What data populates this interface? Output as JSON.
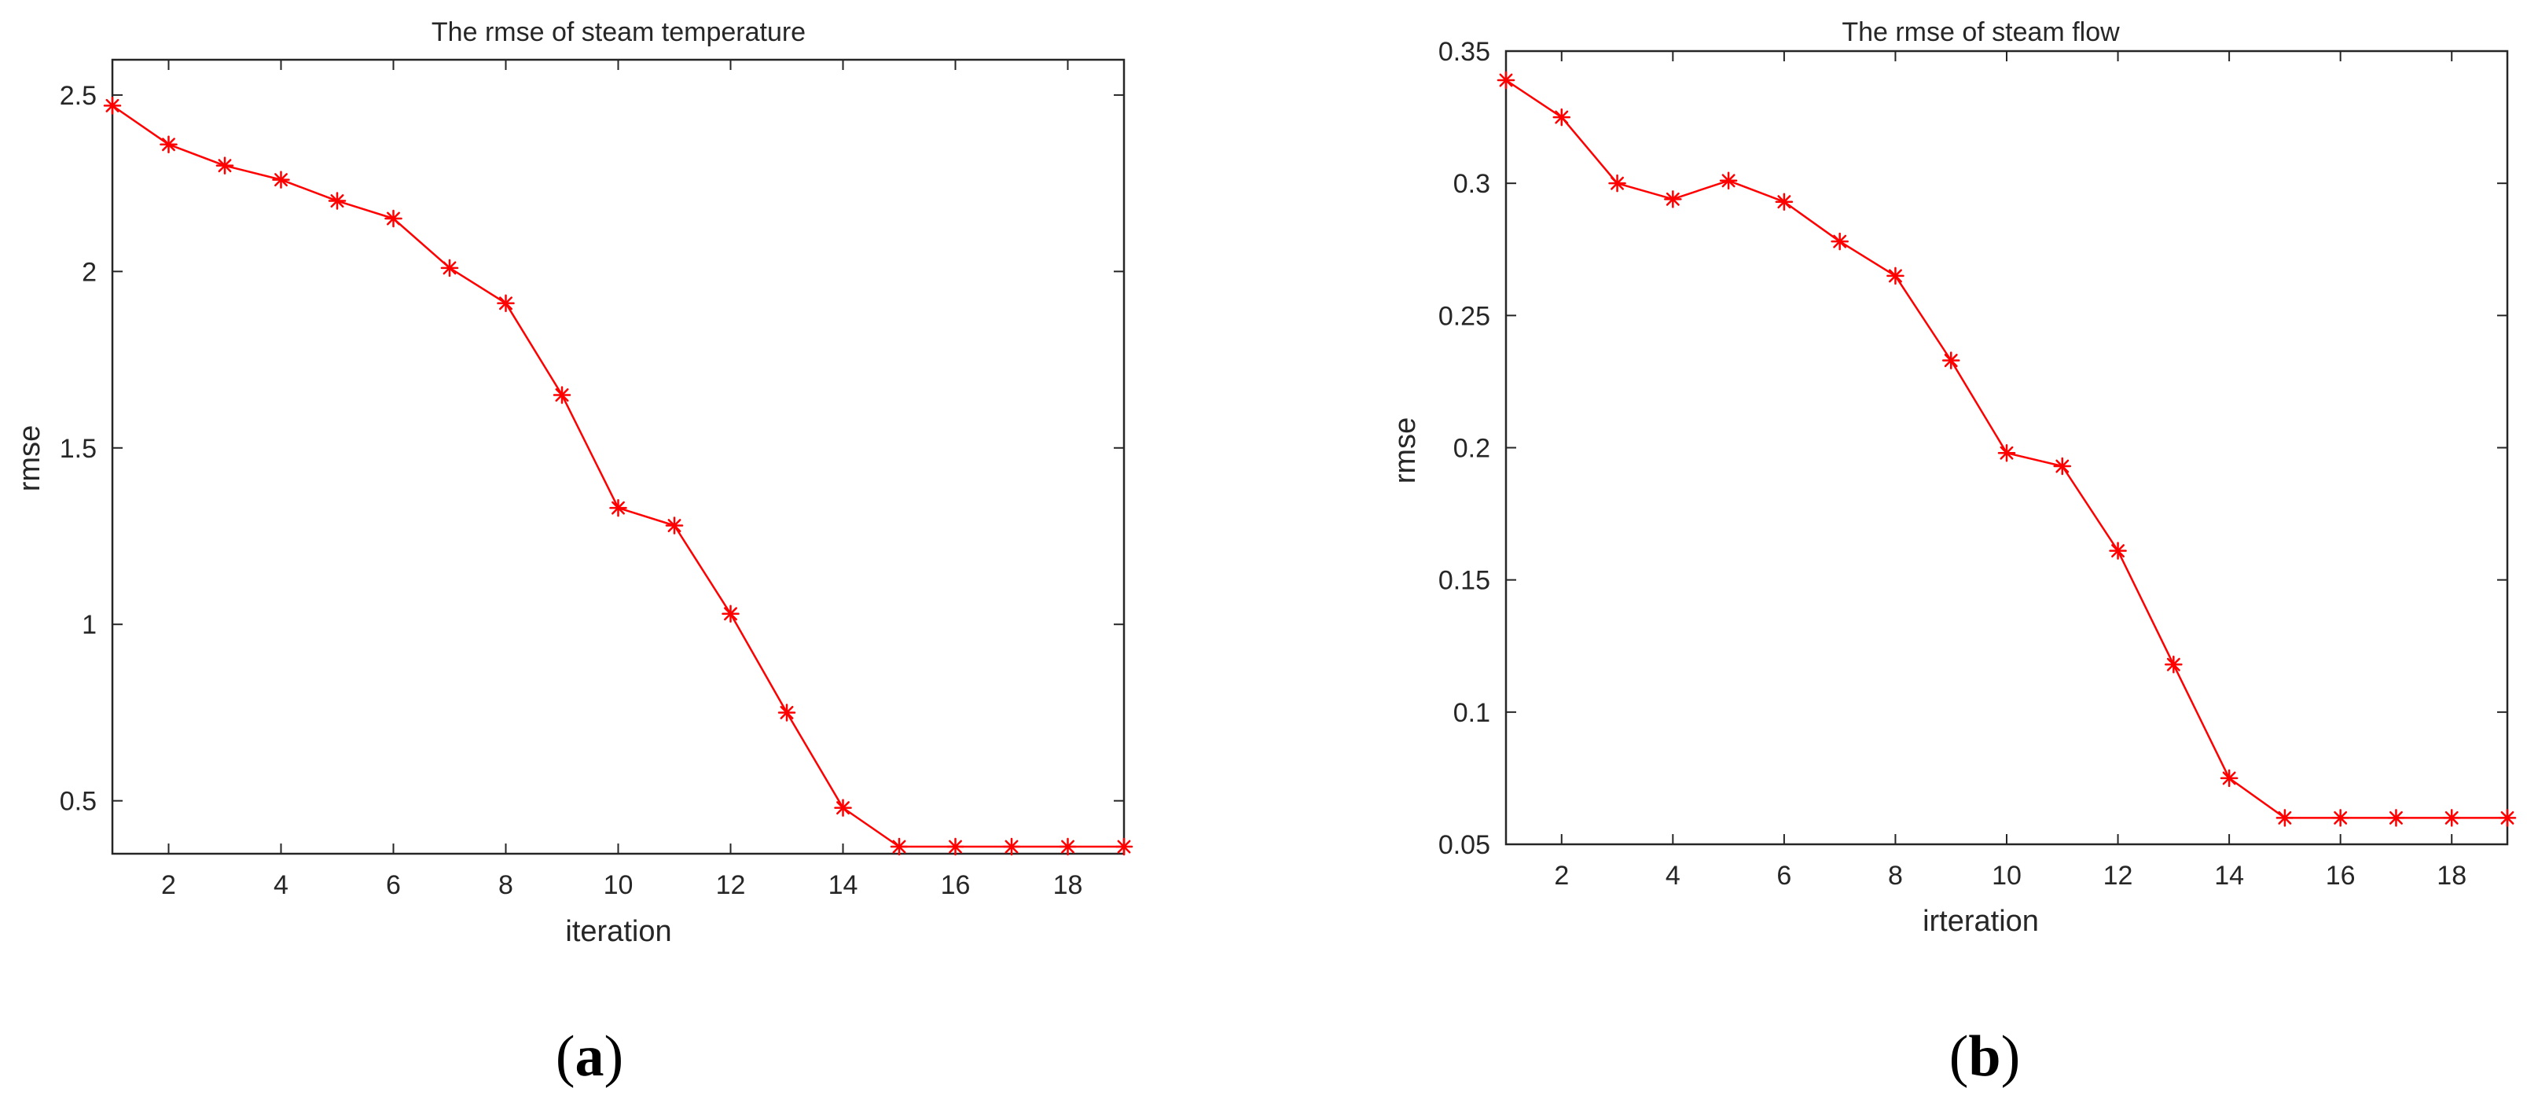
{
  "panels": [
    {
      "caption_letter": "a"
    },
    {
      "caption_letter": "b"
    }
  ],
  "chart_data": [
    {
      "type": "line",
      "title": "The rmse of steam temperature",
      "xlabel": "iteration",
      "ylabel": "rmse",
      "xlim": [
        1,
        19
      ],
      "ylim": [
        0.35,
        2.6
      ],
      "xticks": [
        2,
        4,
        6,
        8,
        10,
        12,
        14,
        16,
        18
      ],
      "xtick_labels": [
        "2",
        "4",
        "6",
        "8",
        "10",
        "12",
        "14",
        "16",
        "18"
      ],
      "yticks": [
        0.5,
        1,
        1.5,
        2,
        2.5
      ],
      "ytick_labels": [
        "0.5",
        "1",
        "1.5",
        "2",
        "2.5"
      ],
      "grid": false,
      "series": [
        {
          "color": "#ff0000",
          "marker": "asterisk",
          "x": [
            1,
            2,
            3,
            4,
            5,
            6,
            7,
            8,
            9,
            10,
            11,
            12,
            13,
            14,
            15,
            16,
            17,
            18,
            19
          ],
          "y": [
            2.47,
            2.36,
            2.3,
            2.26,
            2.2,
            2.15,
            2.01,
            1.91,
            1.65,
            1.33,
            1.28,
            1.03,
            0.75,
            0.48,
            0.37,
            0.37,
            0.37,
            0.37,
            0.37
          ]
        }
      ]
    },
    {
      "type": "line",
      "title": "The rmse of steam flow",
      "xlabel": "irteration",
      "ylabel": "rmse",
      "xlim": [
        1,
        19
      ],
      "ylim": [
        0.05,
        0.35
      ],
      "xticks": [
        2,
        4,
        6,
        8,
        10,
        12,
        14,
        16,
        18
      ],
      "xtick_labels": [
        "2",
        "4",
        "6",
        "8",
        "10",
        "12",
        "14",
        "16",
        "18"
      ],
      "yticks": [
        0.05,
        0.1,
        0.15,
        0.2,
        0.25,
        0.3,
        0.35
      ],
      "ytick_labels": [
        "0.05",
        "0.1",
        "0.15",
        "0.2",
        "0.25",
        "0.3",
        "0.35"
      ],
      "grid": false,
      "series": [
        {
          "color": "#ff0000",
          "marker": "asterisk",
          "x": [
            1,
            2,
            3,
            4,
            5,
            6,
            7,
            8,
            9,
            10,
            11,
            12,
            13,
            14,
            15,
            16,
            17,
            18,
            19
          ],
          "y": [
            0.339,
            0.325,
            0.3,
            0.294,
            0.301,
            0.293,
            0.278,
            0.265,
            0.233,
            0.198,
            0.193,
            0.161,
            0.118,
            0.075,
            0.06,
            0.06,
            0.06,
            0.06,
            0.06
          ]
        }
      ]
    }
  ]
}
